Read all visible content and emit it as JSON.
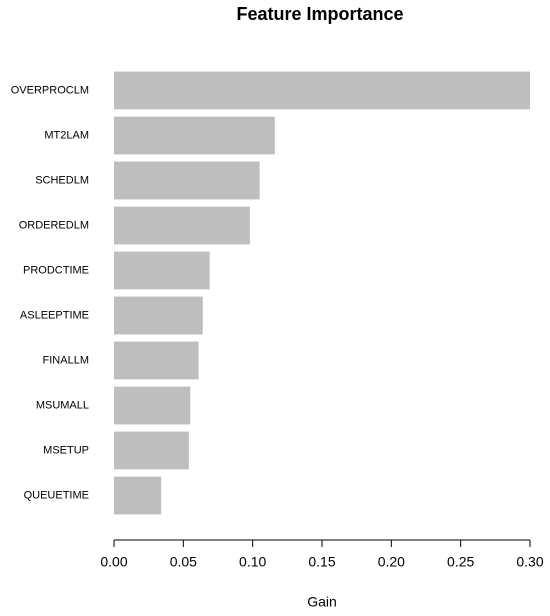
{
  "chart_data": {
    "type": "barh",
    "title": "Feature Importance",
    "x_label": "Gain",
    "categories": [
      "OVERPROCLM",
      "MT2LAM",
      "SCHEDLM",
      "ORDEREDLM",
      "PRODCTIME",
      "ASLEEPTIME",
      "FINALLM",
      "MSUMALL",
      "MSETUP",
      "QUEUETIME"
    ],
    "values": [
      0.3,
      0.116,
      0.105,
      0.098,
      0.069,
      0.064,
      0.061,
      0.055,
      0.054,
      0.034
    ],
    "color": "#bebebe",
    "xlim": [
      0,
      0.3
    ],
    "xticks": [
      {
        "value": 0,
        "label": "0.00"
      },
      0.05,
      {
        "value": 0.1,
        "label": "0.10"
      },
      0.15,
      {
        "value": 0.2,
        "label": "0.20"
      },
      0.25,
      {
        "value": 0.3,
        "label": "0.30"
      }
    ]
  }
}
